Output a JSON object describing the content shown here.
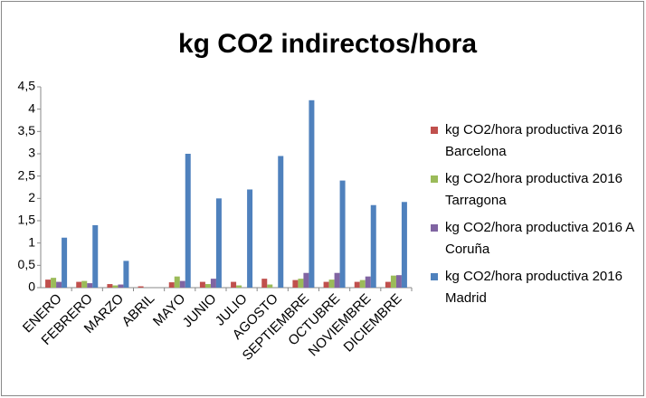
{
  "chart_data": {
    "type": "bar",
    "title": "kg CO2 indirectos/hora",
    "categories": [
      "ENERO",
      "FEBRERO",
      "MARZO",
      "ABRIL",
      "MAYO",
      "JUNIO",
      "JULIO",
      "AGOSTO",
      "SEPTIEMBRE",
      "OCTUBRE",
      "NOVIEMBRE",
      "DICIEMBRE"
    ],
    "series": [
      {
        "name": "kg CO2/hora productiva 2016 Barcelona",
        "color": "#c0504d",
        "values": [
          0.18,
          0.13,
          0.08,
          0.03,
          0.12,
          0.13,
          0.13,
          0.2,
          0.17,
          0.13,
          0.13,
          0.13
        ]
      },
      {
        "name": "kg CO2/hora productiva 2016 Tarragona",
        "color": "#9bbb59",
        "values": [
          0.22,
          0.15,
          0.05,
          0,
          0.25,
          0.08,
          0.05,
          0.07,
          0.2,
          0.18,
          0.17,
          0.27
        ]
      },
      {
        "name": "kg CO2/hora productiva 2016 A Coruña",
        "color": "#8064a2",
        "values": [
          0.13,
          0.1,
          0.07,
          0,
          0.15,
          0.2,
          0,
          0,
          0.33,
          0.33,
          0.25,
          0.28
        ]
      },
      {
        "name": "kg CO2/hora productiva 2016 Madrid",
        "color": "#4f81bd",
        "values": [
          1.12,
          1.4,
          0.6,
          0,
          3.0,
          2.0,
          2.2,
          2.95,
          4.2,
          2.4,
          1.85,
          1.92
        ]
      }
    ],
    "ylim": [
      0,
      4.5
    ],
    "yticks": [
      0,
      {
        "value": 0.5,
        "label": "0,5"
      },
      1,
      {
        "value": 1.5,
        "label": "1,5"
      },
      2,
      {
        "value": 2.5,
        "label": "2,5"
      },
      3,
      {
        "value": 3.5,
        "label": "3,5"
      },
      4,
      {
        "value": 4.5,
        "label": "4,5"
      }
    ],
    "grid": false,
    "legend": "right"
  }
}
